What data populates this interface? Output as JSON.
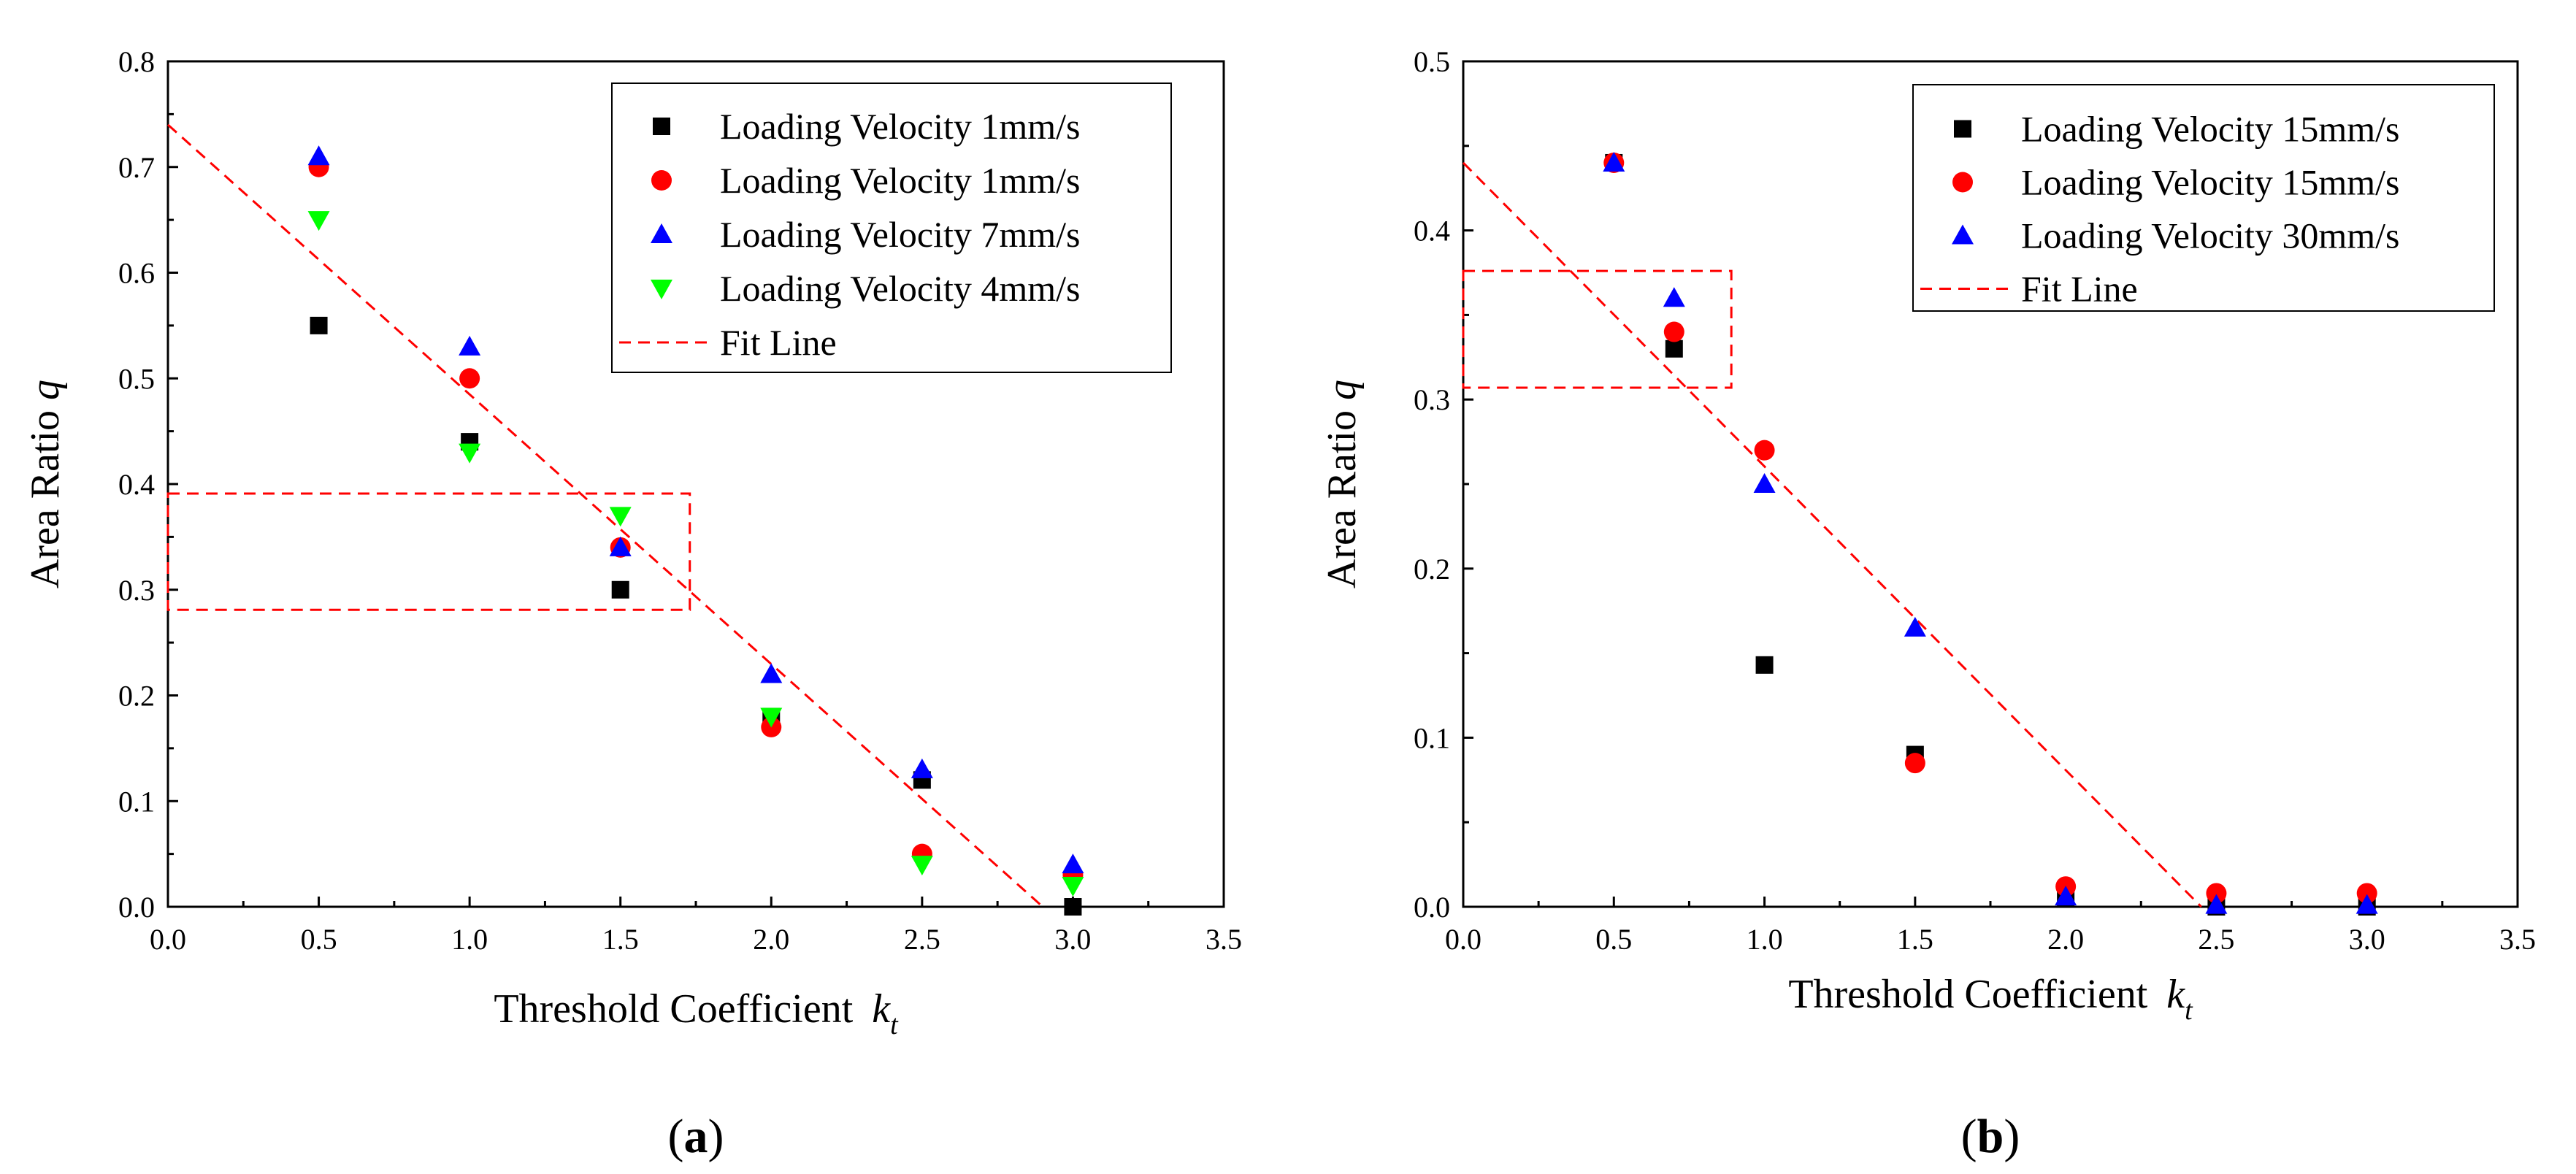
{
  "chart_data": [
    {
      "type": "scatter",
      "panel_label": "(a)",
      "panel_letter": "a",
      "xlabel_main": "Threshold Coefficient",
      "xlabel_symbol": "k",
      "xlabel_subscript": "t",
      "ylabel_main": "Area Ratio",
      "ylabel_symbol": "q",
      "xlim": [
        0,
        3.5
      ],
      "ylim": [
        0,
        0.8
      ],
      "xticks": [
        "0.0",
        "0.5",
        "1.0",
        "1.5",
        "2.0",
        "2.5",
        "3.0",
        "3.5"
      ],
      "yticks": [
        "0.0",
        "0.1",
        "0.2",
        "0.3",
        "0.4",
        "0.5",
        "0.6",
        "0.7",
        "0.8"
      ],
      "legend_position": "top-right",
      "series": [
        {
          "name": "Loading Velocity 1mm/s",
          "marker": "square",
          "color": "#000000",
          "x": [
            0.5,
            1.0,
            1.5,
            2.0,
            2.5,
            3.0
          ],
          "y": [
            0.55,
            0.44,
            0.3,
            0.18,
            0.12,
            0.0
          ]
        },
        {
          "name": "Loading Velocity 1mm/s",
          "marker": "circle",
          "color": "#ff0000",
          "x": [
            0.5,
            1.0,
            1.5,
            2.0,
            2.5,
            3.0
          ],
          "y": [
            0.7,
            0.5,
            0.34,
            0.17,
            0.05,
            0.03
          ]
        },
        {
          "name": "Loading Velocity 7mm/s",
          "marker": "triangle-up",
          "color": "#0000ff",
          "x": [
            0.5,
            1.0,
            1.5,
            2.0,
            2.5,
            3.0
          ],
          "y": [
            0.71,
            0.53,
            0.34,
            0.22,
            0.13,
            0.04
          ]
        },
        {
          "name": "Loading Velocity 4mm/s",
          "marker": "triangle-down",
          "color": "#00ff00",
          "x": [
            0.5,
            1.0,
            1.5,
            2.0,
            2.5,
            3.0
          ],
          "y": [
            0.65,
            0.43,
            0.37,
            0.18,
            0.04,
            0.02
          ]
        }
      ],
      "fit_line": {
        "name": "Fit Line",
        "color": "#ff0000",
        "x": [
          0.0,
          2.9
        ],
        "y": [
          0.74,
          0.0
        ]
      },
      "highlight_box": {
        "color": "#ff0000",
        "x": [
          0.0,
          1.73
        ],
        "y": [
          0.281,
          0.391
        ]
      }
    },
    {
      "type": "scatter",
      "panel_label": "(b)",
      "panel_letter": "b",
      "xlabel_main": "Threshold Coefficient",
      "xlabel_symbol": "k",
      "xlabel_subscript": "t",
      "ylabel_main": "Area Ratio",
      "ylabel_symbol": "q",
      "xlim": [
        0,
        3.5
      ],
      "ylim": [
        0,
        0.5
      ],
      "xticks": [
        "0.0",
        "0.5",
        "1.0",
        "1.5",
        "2.0",
        "2.5",
        "3.0",
        "3.5"
      ],
      "yticks": [
        "0.0",
        "0.1",
        "0.2",
        "0.3",
        "0.4",
        "0.5"
      ],
      "legend_position": "top-right",
      "series": [
        {
          "name": "Loading Velocity 15mm/s",
          "marker": "square",
          "color": "#000000",
          "x": [
            0.5,
            0.7,
            1.0,
            1.5,
            2.0,
            2.5,
            3.0
          ],
          "y": [
            0.44,
            0.33,
            0.143,
            0.09,
            0.005,
            0.0,
            0.0
          ]
        },
        {
          "name": "Loading Velocity 15mm/s",
          "marker": "circle",
          "color": "#ff0000",
          "x": [
            0.5,
            0.7,
            1.0,
            1.5,
            2.0,
            2.5,
            3.0
          ],
          "y": [
            0.44,
            0.34,
            0.27,
            0.085,
            0.012,
            0.008,
            0.008
          ]
        },
        {
          "name": "Loading Velocity 30mm/s",
          "marker": "triangle-up",
          "color": "#0000ff",
          "x": [
            0.5,
            0.7,
            1.0,
            1.5,
            2.0,
            2.5,
            3.0
          ],
          "y": [
            0.44,
            0.36,
            0.25,
            0.165,
            0.006,
            0.001,
            0.001
          ]
        }
      ],
      "fit_line": {
        "name": "Fit Line",
        "color": "#ff0000",
        "x": [
          0.0,
          2.45
        ],
        "y": [
          0.44,
          0.0
        ]
      },
      "highlight_box": {
        "color": "#ff0000",
        "x": [
          0.0,
          0.89
        ],
        "y": [
          0.307,
          0.376
        ]
      }
    }
  ]
}
